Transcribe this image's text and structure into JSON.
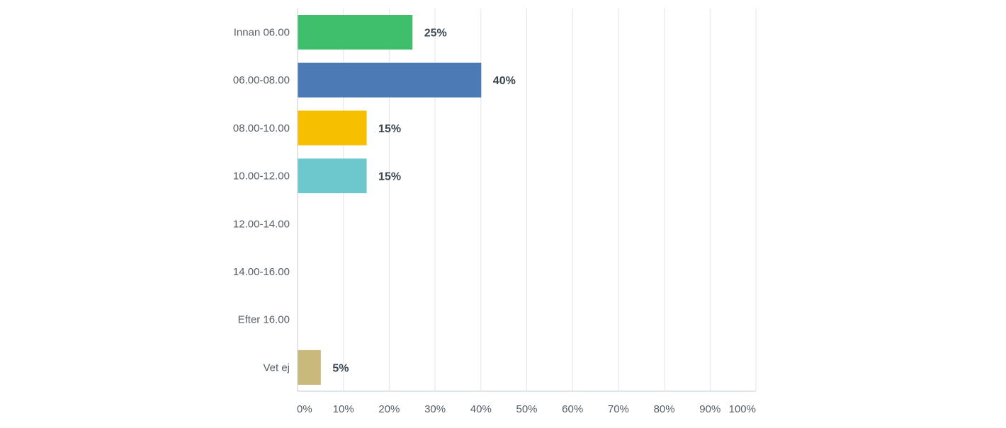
{
  "chart_data": {
    "type": "bar",
    "orientation": "horizontal",
    "categories": [
      "Innan 06.00",
      "06.00-08.00",
      "08.00-10.00",
      "10.00-12.00",
      "12.00-14.00",
      "14.00-16.00",
      "Efter 16.00",
      "Vet ej"
    ],
    "values": [
      25,
      40,
      15,
      15,
      0,
      0,
      0,
      5
    ],
    "value_labels": [
      "25%",
      "40%",
      "15%",
      "15%",
      "",
      "",
      "",
      "5%"
    ],
    "bar_colors": [
      "#3fbf6c",
      "#4b7ab5",
      "#f6bf00",
      "#6cc8cc",
      "#3fbf6c",
      "#4b7ab5",
      "#f6bf00",
      "#c9b97a"
    ],
    "xlim": [
      0,
      100
    ],
    "x_ticks": [
      0,
      10,
      20,
      30,
      40,
      50,
      60,
      70,
      80,
      90,
      100
    ],
    "x_tick_labels": [
      "0%",
      "10%",
      "20%",
      "30%",
      "40%",
      "50%",
      "60%",
      "70%",
      "80%",
      "90%",
      "100%"
    ],
    "grid": "vertical",
    "legend": "none"
  }
}
